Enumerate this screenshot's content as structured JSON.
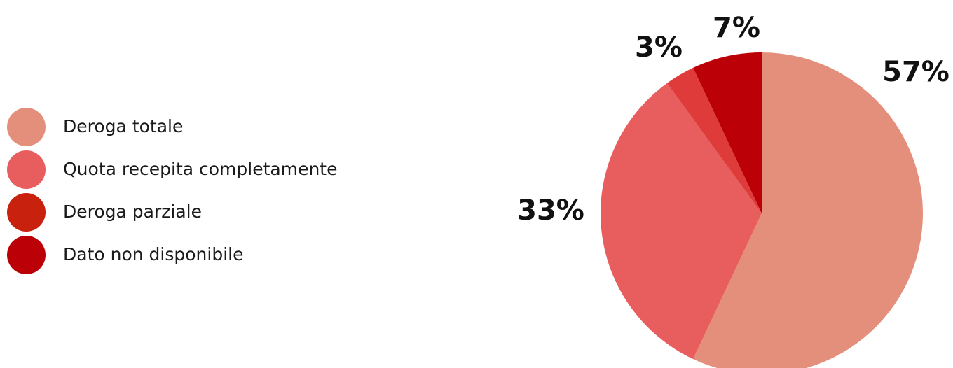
{
  "chart_data": {
    "type": "pie",
    "title": "",
    "slices": [
      {
        "label": "Deroga totale",
        "value": 57,
        "value_label": "57%",
        "color": "#E48F7B"
      },
      {
        "label": "Quota recepita completamente",
        "value": 33,
        "value_label": "33%",
        "color": "#E85E5E"
      },
      {
        "label": "Deroga parziale",
        "value": 3,
        "value_label": "3%",
        "color": "#DF3B3B"
      },
      {
        "label": "Dato non disponibile",
        "value": 7,
        "value_label": "7%",
        "color": "#BC0008"
      }
    ],
    "legend": {
      "position": "left",
      "items": [
        {
          "label": "Deroga totale",
          "color": "#E48F7B"
        },
        {
          "label": "Quota recepita completamente",
          "color": "#E85E5E"
        },
        {
          "label": "Deroga parziale",
          "color": "#C8220F"
        },
        {
          "label": "Dato non disponibile",
          "color": "#BC0008"
        }
      ]
    }
  }
}
